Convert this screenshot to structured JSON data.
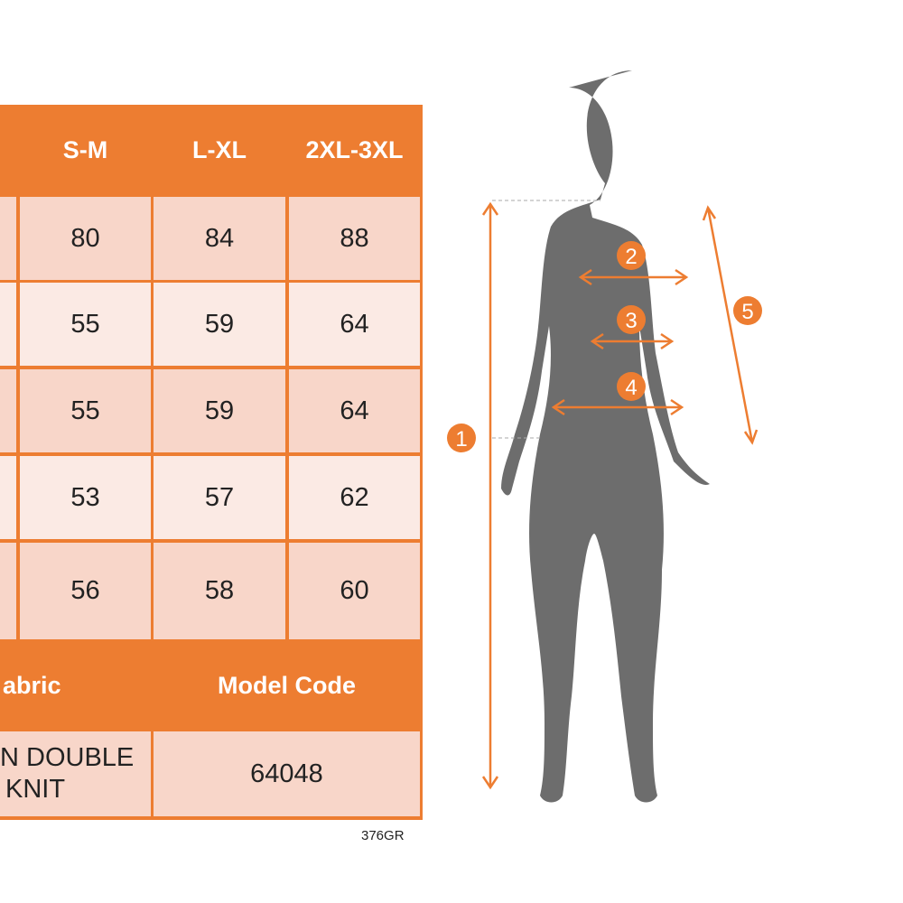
{
  "table": {
    "sizes": [
      "S-M",
      "L-XL",
      "2XL-3XL"
    ],
    "rows": [
      [
        "80",
        "84",
        "88"
      ],
      [
        "55",
        "59",
        "64"
      ],
      [
        "55",
        "59",
        "64"
      ],
      [
        "53",
        "57",
        "62"
      ],
      [
        "56",
        "58",
        "60"
      ]
    ],
    "footer_headers": {
      "fabric": "abric",
      "model_code": "Model Code"
    },
    "footer_values": {
      "fabric_line1": "N DOUBLE",
      "fabric_line2": "KNIT",
      "model_code": "64048"
    }
  },
  "product_code": "376GR",
  "figure": {
    "markers": [
      "1",
      "2",
      "3",
      "4",
      "5"
    ]
  },
  "colors": {
    "accent": "#ed7d31",
    "silhouette": "#6d6d6d",
    "row_dark": "#f8d6c9",
    "row_light": "#fbeae4"
  }
}
